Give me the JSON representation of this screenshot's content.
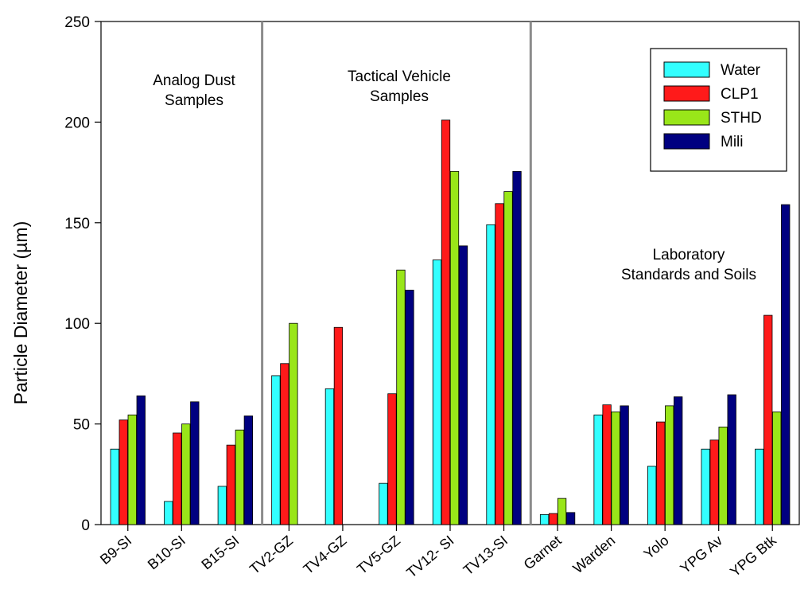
{
  "chart_data": {
    "type": "bar",
    "title": "",
    "xlabel": "",
    "ylabel": "Particle Diameter (µm)",
    "ylim": [
      0,
      250
    ],
    "yticks": [
      0,
      50,
      100,
      150,
      200,
      250
    ],
    "grid": false,
    "legend_position": "top-right",
    "categories": [
      "B9-SI",
      "B10-SI",
      "B15-SI",
      "TV2-GZ",
      "TV4-GZ",
      "TV5-GZ",
      "TV12- SI",
      "TV13-SI",
      "Garnet",
      "Warden",
      "Yolo",
      "YPG Av",
      "YPG Btk"
    ],
    "series": [
      {
        "name": "Water",
        "color": "#33ffff",
        "values": [
          37.5,
          11.5,
          19,
          74,
          67.5,
          20.5,
          131.5,
          149,
          5,
          54.5,
          29,
          37.5,
          37.5
        ]
      },
      {
        "name": "CLP1",
        "color": "#ff1a1a",
        "values": [
          52,
          45.5,
          39.5,
          80,
          98,
          65,
          201,
          159.5,
          5.5,
          59.5,
          51,
          42,
          104
        ]
      },
      {
        "name": "STHD",
        "color": "#99e619",
        "values": [
          54.5,
          50,
          47,
          100,
          null,
          126.5,
          175.5,
          165.5,
          13,
          56,
          59,
          48.5,
          56
        ]
      },
      {
        "name": "Mili",
        "color": "#000080",
        "values": [
          64,
          61,
          54,
          null,
          null,
          116.5,
          138.5,
          175.5,
          6,
          59,
          63.5,
          64.5,
          159
        ]
      }
    ],
    "dividers_after_category_index": [
      2,
      7
    ],
    "annotations": [
      {
        "lines": [
          "Analog Dust",
          "Samples"
        ]
      },
      {
        "lines": [
          "Tactical Vehicle",
          "Samples"
        ]
      },
      {
        "lines": [
          "Laboratory",
          "Standards and Soils"
        ]
      }
    ]
  }
}
